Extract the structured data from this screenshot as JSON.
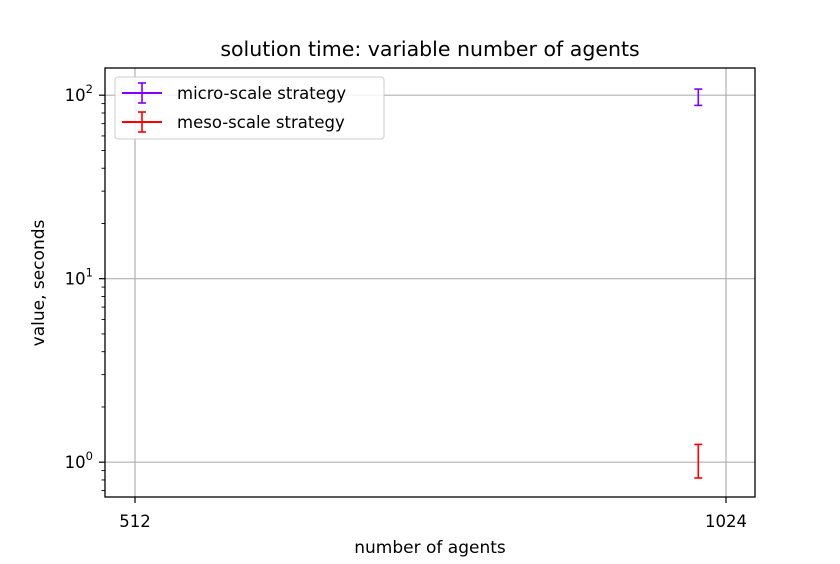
{
  "chart_data": {
    "type": "scatter",
    "title": "solution time: variable number of agents",
    "xlabel": "number of agents",
    "ylabel": "value, seconds",
    "y_scale": "log",
    "grid": true,
    "legend_position": "top-left",
    "x_ticks": [
      {
        "value": 512,
        "label": "512"
      },
      {
        "value": 1024,
        "label": "1024"
      }
    ],
    "y_ticks": [
      {
        "value": 1,
        "base": "10",
        "exp": "0"
      },
      {
        "value": 10,
        "base": "10",
        "exp": "1"
      },
      {
        "value": 100,
        "base": "10",
        "exp": "2"
      }
    ],
    "series": [
      {
        "name": "micro-scale strategy",
        "color": "#7f00ff",
        "points": [
          {
            "x": 1000,
            "y": 98,
            "y_low": 88,
            "y_high": 108
          }
        ]
      },
      {
        "name": "meso-scale strategy",
        "color": "#ff0000",
        "points": [
          {
            "x": 1000,
            "y": 1.0,
            "y_low": 0.82,
            "y_high": 1.25
          }
        ]
      }
    ]
  }
}
